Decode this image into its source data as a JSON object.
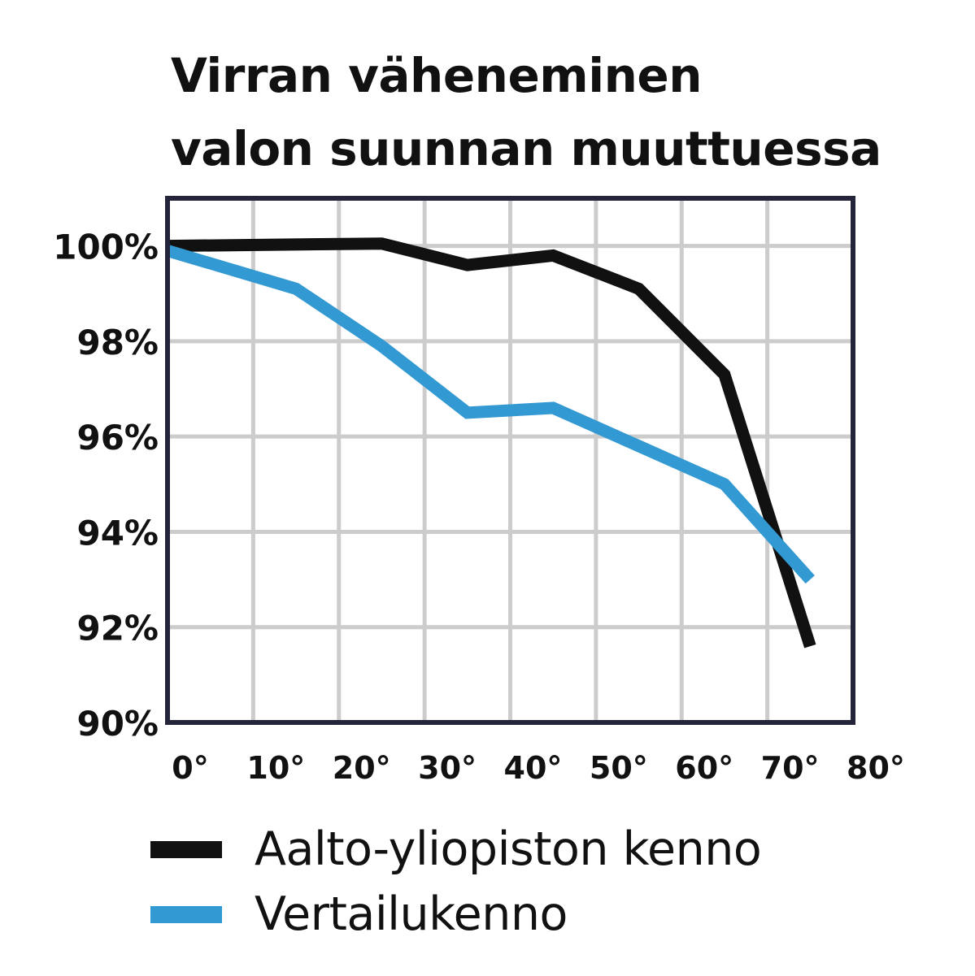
{
  "chart_data": {
    "type": "line",
    "title_lines": [
      "Virran väheneminen",
      "valon suunnan muuttuessa"
    ],
    "xlabel": "",
    "ylabel": "",
    "xlim": [
      0,
      80
    ],
    "ylim": [
      90,
      101
    ],
    "x_ticks": [
      0,
      10,
      20,
      30,
      40,
      50,
      60,
      70,
      80
    ],
    "x_tick_labels": [
      "0°",
      "10°",
      "20°",
      "30°",
      "40°",
      "50°",
      "60°",
      "70°",
      "80°"
    ],
    "y_ticks": [
      90,
      92,
      94,
      96,
      98,
      100
    ],
    "y_tick_labels": [
      "90%",
      "92%",
      "94%",
      "96%",
      "98%",
      "100%"
    ],
    "grid": true,
    "legend_position": "bottom",
    "series": [
      {
        "name": "Aalto-yliopiston kenno",
        "color": "#111111",
        "x": [
          0,
          25,
          35,
          45,
          55,
          65,
          75
        ],
        "y": [
          100,
          100.05,
          99.6,
          99.8,
          99.1,
          97.3,
          91.6
        ]
      },
      {
        "name": "Vertailukenno",
        "color": "#3399d2",
        "x": [
          0,
          15,
          25,
          35,
          45,
          55,
          65,
          75
        ],
        "y": [
          99.9,
          99.1,
          97.9,
          96.5,
          96.6,
          95.8,
          95.0,
          93.0
        ]
      }
    ]
  },
  "colors": {
    "frame": "#24243a",
    "grid": "#cccccc",
    "text": "#111111"
  }
}
